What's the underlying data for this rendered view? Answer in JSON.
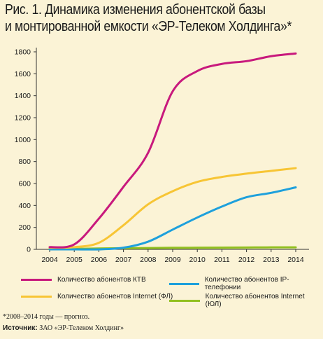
{
  "title_line1": "Рис. 1. Динамика изменения абонентской базы",
  "title_line2": "и монтированной емкости «ЭР-Телеком Холдинга»*",
  "footnote": "*2008–2014 годы — прогноз.",
  "source_label": "Источник:",
  "source_text": " ЗАО «ЭР-Телеком Холдинг»",
  "chart_data": {
    "type": "line",
    "x": [
      2004,
      2005,
      2006,
      2007,
      2008,
      2009,
      2010,
      2011,
      2012,
      2013,
      2014
    ],
    "ylim": [
      0,
      1800
    ],
    "yticks": [
      0,
      200,
      400,
      600,
      800,
      1000,
      1200,
      1400,
      1600,
      1800
    ],
    "grid": false,
    "series": [
      {
        "name": "Количество абонентов КТВ",
        "color": "#c8197d",
        "values": [
          20,
          45,
          280,
          570,
          880,
          1440,
          1625,
          1690,
          1715,
          1760,
          1785
        ]
      },
      {
        "name": "Количество абонентов IP-телефонии",
        "color": "#1ea0dc",
        "values": [
          0,
          0,
          0,
          15,
          70,
          180,
          290,
          390,
          475,
          515,
          565
        ]
      },
      {
        "name": "Количество абонентов Internet (ФЛ)",
        "color": "#f7c535",
        "values": [
          15,
          20,
          60,
          220,
          410,
          530,
          615,
          660,
          690,
          715,
          740
        ]
      },
      {
        "name": "Количество абонентов Internet (ЮЛ)",
        "color": "#92c020",
        "values": [
          5,
          5,
          8,
          10,
          12,
          14,
          15,
          16,
          17,
          18,
          18
        ]
      }
    ]
  }
}
